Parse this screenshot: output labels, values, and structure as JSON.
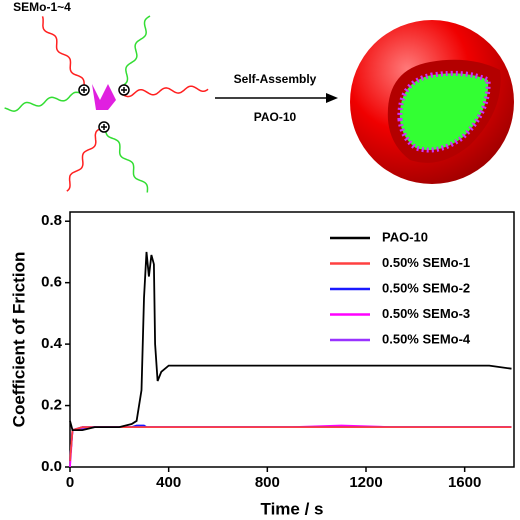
{
  "schematic": {
    "molecule_label": "SEMo-1~4",
    "arrow_label_top": "Self-Assembly",
    "arrow_label_bottom": "PAO-10"
  },
  "chart_data": {
    "type": "line",
    "x_label": "Time / s",
    "y_label": "Coefficient of Friction",
    "x": [
      0,
      10,
      50,
      100,
      150,
      200,
      250,
      270,
      290,
      300,
      310,
      320,
      330,
      340,
      345,
      355,
      370,
      400,
      500,
      700,
      900,
      1100,
      1300,
      1500,
      1700,
      1790
    ],
    "series": [
      {
        "name": "PAO-10",
        "color": "#000000",
        "values": [
          0.15,
          0.12,
          0.12,
          0.13,
          0.13,
          0.13,
          0.14,
          0.15,
          0.25,
          0.55,
          0.7,
          0.62,
          0.69,
          0.66,
          0.4,
          0.28,
          0.31,
          0.33,
          0.33,
          0.33,
          0.33,
          0.33,
          0.33,
          0.33,
          0.33,
          0.32
        ]
      },
      {
        "name": "0.50% SEMo-1",
        "color": "#ff4040",
        "values": [
          0.02,
          0.12,
          0.13,
          0.13,
          0.13,
          0.13,
          0.13,
          0.13,
          0.13,
          0.13,
          0.13,
          0.13,
          0.13,
          0.13,
          0.13,
          0.13,
          0.13,
          0.13,
          0.13,
          0.13,
          0.13,
          0.13,
          0.13,
          0.13,
          0.13,
          0.13
        ]
      },
      {
        "name": "0.50% SEMo-2",
        "color": "#1a1aff",
        "values": [
          0.02,
          0.12,
          0.13,
          0.13,
          0.13,
          0.13,
          0.13,
          0.135,
          0.135,
          0.135,
          0.13,
          0.13,
          0.13,
          0.13,
          0.13,
          0.13,
          0.13,
          0.13,
          0.13,
          0.13,
          0.13,
          0.13,
          0.13,
          0.13,
          0.13,
          0.13
        ]
      },
      {
        "name": "0.50% SEMo-3",
        "color": "#ff00ff",
        "values": [
          0.0,
          0.12,
          0.13,
          0.13,
          0.13,
          0.13,
          0.13,
          0.13,
          0.13,
          0.13,
          0.13,
          0.13,
          0.13,
          0.13,
          0.13,
          0.13,
          0.13,
          0.13,
          0.13,
          0.13,
          0.13,
          0.135,
          0.13,
          0.13,
          0.13,
          0.13
        ]
      },
      {
        "name": "0.50% SEMo-4",
        "color": "#9933ff",
        "values": [
          0.02,
          0.12,
          0.125,
          0.13,
          0.13,
          0.13,
          0.13,
          0.13,
          0.13,
          0.13,
          0.13,
          0.13,
          0.13,
          0.13,
          0.13,
          0.13,
          0.13,
          0.13,
          0.13,
          0.13,
          0.13,
          0.13,
          0.13,
          0.13,
          0.13,
          0.13
        ]
      }
    ],
    "xlim": [
      0,
      1800
    ],
    "xticks": [
      0,
      400,
      800,
      1200,
      1600
    ],
    "ylim": [
      0,
      0.83
    ],
    "yticks": [
      {
        "value": 0,
        "label": "0.0"
      },
      0.2,
      0.4,
      0.6,
      0.8
    ],
    "legend": "upper right",
    "grid": false
  }
}
